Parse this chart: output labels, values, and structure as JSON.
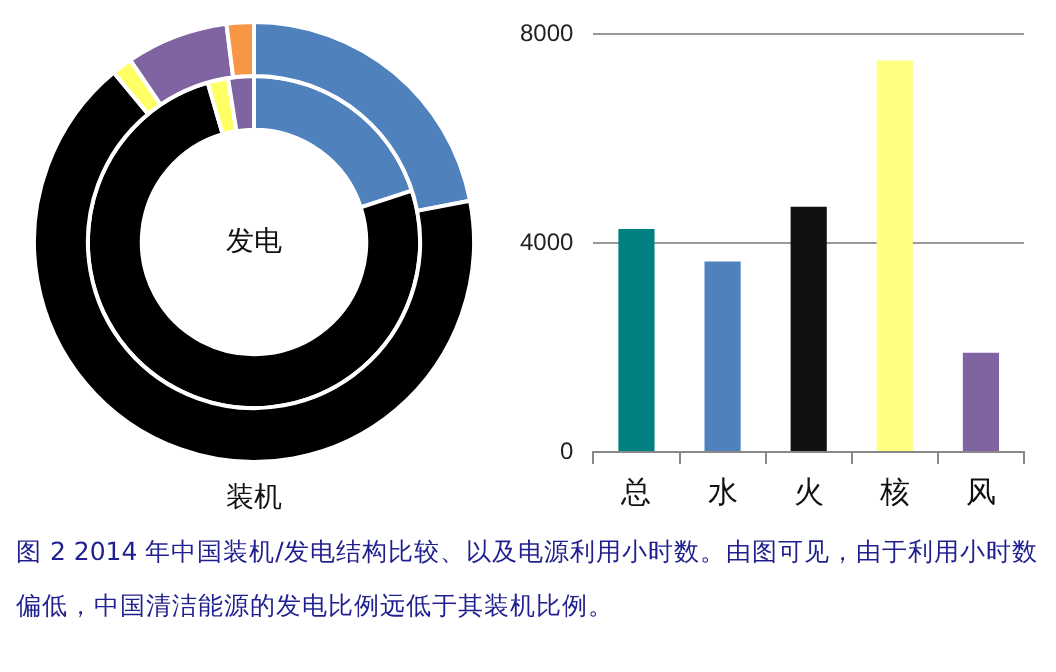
{
  "chart_data": [
    {
      "type": "donut",
      "categories": [
        null,
        null,
        null,
        null,
        null
      ],
      "legend": false,
      "series": [
        {
          "name": "装机",
          "values": [
            22,
            67,
            1.5,
            7.5,
            2
          ],
          "colors": [
            "#4f81bd",
            "#000000",
            "#ffff66",
            "#8064a2",
            "#f79646"
          ]
        },
        {
          "name": "发电",
          "values": [
            20,
            75.5,
            2,
            2.5,
            0
          ],
          "colors": [
            "#4f81bd",
            "#000000",
            "#ffff66",
            "#8064a2",
            "#f79646"
          ]
        }
      ]
    },
    {
      "type": "bar",
      "categories": [
        "总",
        "水",
        "火",
        "核",
        "风"
      ],
      "values": [
        4270,
        3650,
        4700,
        7500,
        1900
      ],
      "colors": [
        "#008080",
        "#4f81bd",
        "#111111",
        "#ffff80",
        "#8064a2"
      ],
      "ylim": [
        0,
        8000
      ],
      "yticks": [
        0,
        4000,
        8000
      ],
      "grid": "y",
      "legend": false,
      "annotations": [
        "图 2   2014 年中国装机/发电结构比较、以及电源利用小时数。由图可见，由于利用小时数偏低，中国清洁能源的发电比例远低于其装机比例。"
      ]
    }
  ]
}
